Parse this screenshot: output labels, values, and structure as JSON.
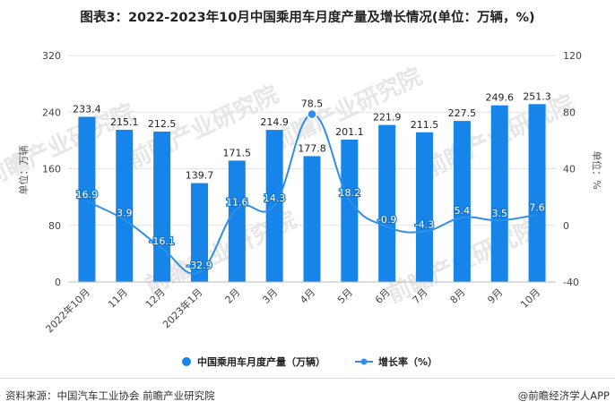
{
  "title": "图表3：2022-2023年10月中国乘用车月度产量及增长情况(单位：万辆，%)",
  "footer": {
    "source": "资料来源：中国汽车工业协会 前瞻产业研究院",
    "brand": "@前瞻经济学人APP"
  },
  "chart_data": {
    "type": "bar",
    "categories": [
      "2022年10月",
      "11月",
      "12月",
      "2023年1月",
      "2月",
      "3月",
      "4月",
      "5月",
      "6月",
      "7月",
      "8月",
      "9月",
      "10月"
    ],
    "series": [
      {
        "name": "中国乘用车月度产量（万辆）",
        "type": "bar",
        "axis": "left",
        "color": "#1684e8",
        "values": [
          233.4,
          215.1,
          212.5,
          139.7,
          171.5,
          214.9,
          177.8,
          201.1,
          221.9,
          211.5,
          227.5,
          249.6,
          251.3
        ],
        "labels": [
          "233.4",
          "215.1",
          "212.5",
          "139.7",
          "171.5",
          "214.9",
          "177.8",
          "201.1",
          "221.9",
          "211.5",
          "227.5",
          "249.6",
          "251.3"
        ]
      },
      {
        "name": "增长率（%）",
        "type": "line",
        "axis": "right",
        "color": "#2f8fe8",
        "values": [
          16.9,
          3.9,
          -16.1,
          -32.9,
          11.6,
          14.3,
          78.5,
          18.2,
          -0.9,
          -4.3,
          5.4,
          3.5,
          7.6
        ],
        "labels": [
          "16.9",
          "3.9",
          "-16.1",
          "-32.9",
          "11.6",
          "14.3",
          "78.5",
          "18.2",
          "-0.9",
          "-4.3",
          "5.4",
          "3.5",
          "7.6"
        ]
      }
    ],
    "y_left": {
      "label": "单位：万辆",
      "min": 0,
      "max": 320,
      "ticks": [
        "0",
        "80",
        "160",
        "240",
        "320"
      ]
    },
    "y_right": {
      "label": "单位：%",
      "min": -40,
      "max": 120,
      "ticks": [
        "-40",
        "0",
        "40",
        "80",
        "120"
      ]
    },
    "legend": {
      "position": "bottom"
    },
    "grid": true,
    "watermark": "前瞻产业研究院"
  }
}
